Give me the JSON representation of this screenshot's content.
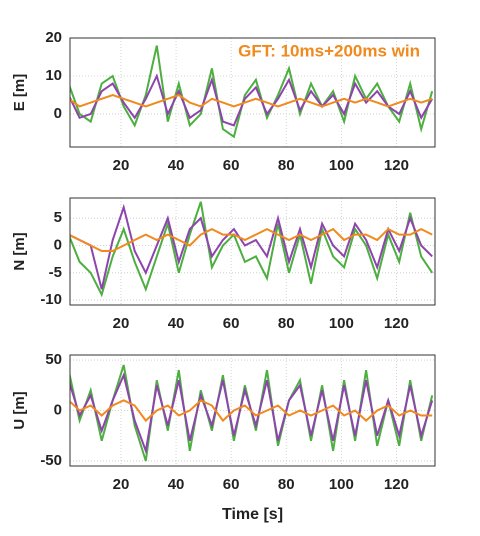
{
  "chart_data": [
    {
      "type": "line",
      "ylabel": "E [m]",
      "annotation": "GFT: 10ms+200ms win",
      "x": [
        1,
        5,
        9,
        13,
        17,
        21,
        25,
        29,
        33,
        37,
        41,
        45,
        49,
        53,
        57,
        61,
        65,
        69,
        73,
        77,
        81,
        85,
        89,
        93,
        97,
        101,
        105,
        109,
        113,
        117,
        121,
        125,
        129,
        133
      ],
      "xlim": [
        1.5,
        134
      ],
      "ylim": [
        -8.7,
        20
      ],
      "xticks": [
        20,
        40,
        60,
        80,
        100,
        120
      ],
      "yticks": [
        0,
        10,
        20
      ],
      "grid": true,
      "series": [
        {
          "color": "#4caf3f",
          "values": [
            8,
            0,
            -2,
            8,
            10,
            2,
            -3,
            5,
            18,
            -2,
            8,
            -3,
            0,
            12,
            -4,
            -6,
            5,
            9,
            -1,
            5,
            12,
            0,
            8,
            2,
            6,
            -2,
            10,
            4,
            8,
            2,
            -2,
            8,
            -4,
            6
          ]
        },
        {
          "color": "#8e44ad",
          "values": [
            5,
            -1,
            0,
            6,
            8,
            3,
            -1,
            4,
            10,
            0,
            6,
            -1,
            1,
            9,
            -2,
            -3,
            4,
            7,
            0,
            4,
            9,
            1,
            6,
            2,
            5,
            0,
            8,
            3,
            6,
            2,
            0,
            6,
            -1,
            4
          ]
        },
        {
          "color": "#f08a1c",
          "values": [
            4,
            2,
            3,
            4,
            5,
            4,
            3,
            2,
            3,
            4,
            5,
            3,
            2,
            4,
            3,
            2,
            3,
            4,
            3,
            2,
            3,
            4,
            3,
            2,
            3,
            4,
            3,
            4,
            3,
            2,
            3,
            4,
            3,
            4
          ]
        }
      ]
    },
    {
      "type": "line",
      "ylabel": "N [m]",
      "x": [
        1,
        5,
        9,
        13,
        17,
        21,
        25,
        29,
        33,
        37,
        41,
        45,
        49,
        53,
        57,
        61,
        65,
        69,
        73,
        77,
        81,
        85,
        89,
        93,
        97,
        101,
        105,
        109,
        113,
        117,
        121,
        125,
        129,
        133
      ],
      "xlim": [
        1.5,
        134
      ],
      "ylim": [
        -10.9,
        8.7
      ],
      "xticks": [
        20,
        40,
        60,
        80,
        100,
        120
      ],
      "yticks": [
        -10,
        -5,
        0,
        5
      ],
      "grid": true,
      "series": [
        {
          "color": "#4caf3f",
          "values": [
            2,
            -3,
            -5,
            -9,
            -2,
            3,
            -3,
            -8,
            -2,
            4,
            -5,
            2,
            8,
            -4,
            0,
            2,
            -3,
            -2,
            -6,
            4,
            -5,
            2,
            -7,
            3,
            -2,
            -4,
            3,
            0,
            -6,
            2,
            -3,
            6,
            -2,
            -5
          ]
        },
        {
          "color": "#8e44ad",
          "values": [
            2,
            1,
            0,
            -8,
            1,
            7,
            -1,
            -5,
            0,
            5,
            -3,
            3,
            5,
            -2,
            1,
            3,
            0,
            1,
            -2,
            5,
            -3,
            3,
            -4,
            4,
            0,
            -2,
            4,
            1,
            -4,
            3,
            -1,
            5,
            0,
            -2
          ]
        },
        {
          "color": "#f08a1c",
          "values": [
            2,
            1,
            0,
            -1,
            -1,
            0,
            1,
            2,
            1,
            2,
            1,
            0,
            2,
            3,
            2,
            2,
            1,
            2,
            3,
            2,
            1,
            2,
            1,
            2,
            3,
            1,
            2,
            2,
            1,
            3,
            2,
            2,
            3,
            2
          ]
        }
      ]
    },
    {
      "type": "line",
      "ylabel": "U [m]",
      "xlabel": "Time [s]",
      "x": [
        1,
        5,
        9,
        13,
        17,
        21,
        25,
        29,
        33,
        37,
        41,
        45,
        49,
        53,
        57,
        61,
        65,
        69,
        73,
        77,
        81,
        85,
        89,
        93,
        97,
        101,
        105,
        109,
        113,
        117,
        121,
        125,
        129,
        133
      ],
      "xlim": [
        1.5,
        134
      ],
      "ylim": [
        -55,
        55
      ],
      "xticks": [
        20,
        40,
        60,
        80,
        100,
        120
      ],
      "yticks": [
        -50,
        0,
        50
      ],
      "grid": true,
      "series": [
        {
          "color": "#4caf3f",
          "values": [
            40,
            -10,
            20,
            -30,
            10,
            45,
            -15,
            -50,
            30,
            -20,
            40,
            -40,
            20,
            -20,
            35,
            -30,
            25,
            -20,
            40,
            -35,
            10,
            30,
            -30,
            25,
            -40,
            30,
            -30,
            40,
            -35,
            10,
            -35,
            30,
            -30,
            15
          ]
        },
        {
          "color": "#8e44ad",
          "values": [
            30,
            -5,
            15,
            -20,
            10,
            35,
            -10,
            -40,
            25,
            -15,
            30,
            -30,
            15,
            -15,
            30,
            -25,
            20,
            -15,
            30,
            -30,
            10,
            25,
            -25,
            20,
            -30,
            25,
            -25,
            30,
            -25,
            10,
            -25,
            25,
            -25,
            10
          ]
        },
        {
          "color": "#f08a1c",
          "values": [
            10,
            0,
            5,
            -5,
            5,
            10,
            5,
            -10,
            0,
            5,
            -5,
            0,
            10,
            5,
            -10,
            0,
            5,
            -5,
            0,
            5,
            -5,
            0,
            -5,
            0,
            5,
            -5,
            0,
            -10,
            0,
            5,
            -5,
            0,
            -5,
            -5
          ]
        }
      ]
    }
  ]
}
